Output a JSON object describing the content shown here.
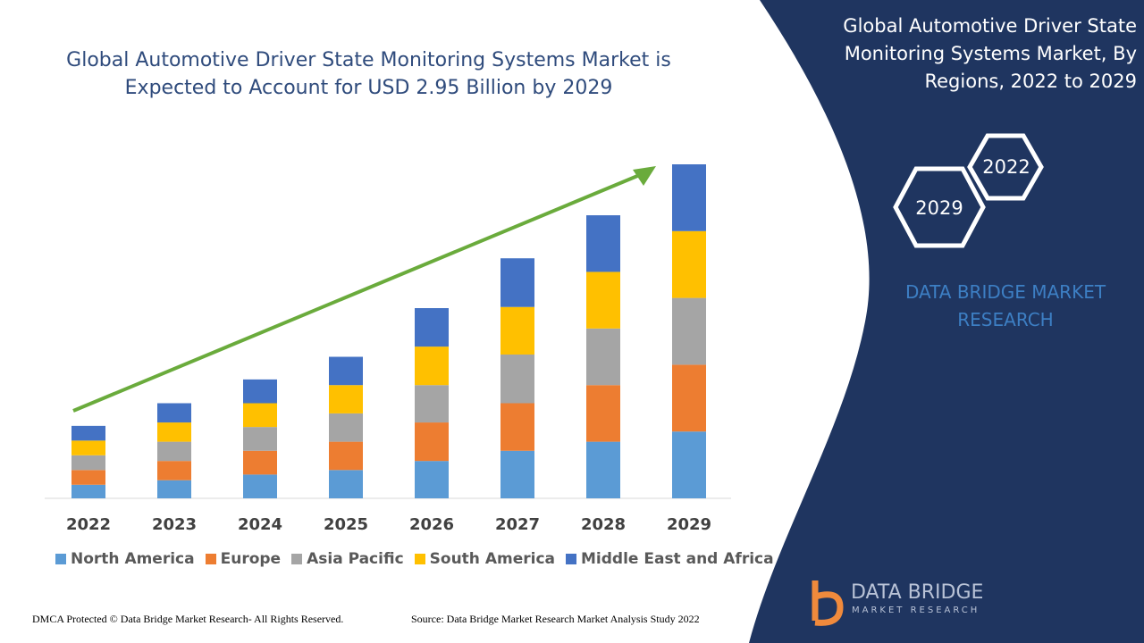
{
  "chart_data": {
    "type": "bar",
    "stacked": true,
    "title": "Global Automotive Driver State Monitoring Systems Market is Expected to Account for USD 2.95 Billion by 2029",
    "categories": [
      "2022",
      "2023",
      "2024",
      "2025",
      "2026",
      "2027",
      "2028",
      "2029"
    ],
    "series": [
      {
        "name": "North America",
        "color": "#5b9bd5",
        "values": [
          0.12,
          0.16,
          0.21,
          0.25,
          0.33,
          0.42,
          0.5,
          0.59
        ]
      },
      {
        "name": "Europe",
        "color": "#ed7d31",
        "values": [
          0.13,
          0.17,
          0.21,
          0.25,
          0.34,
          0.42,
          0.5,
          0.59
        ]
      },
      {
        "name": "Asia Pacific",
        "color": "#a5a5a5",
        "values": [
          0.13,
          0.17,
          0.21,
          0.25,
          0.33,
          0.43,
          0.5,
          0.59
        ]
      },
      {
        "name": "South America",
        "color": "#ffc000",
        "values": [
          0.13,
          0.17,
          0.21,
          0.25,
          0.34,
          0.42,
          0.5,
          0.59
        ]
      },
      {
        "name": "Middle East and Africa",
        "color": "#4472c4",
        "values": [
          0.13,
          0.17,
          0.21,
          0.25,
          0.34,
          0.43,
          0.5,
          0.59
        ]
      }
    ]
  },
  "panel": {
    "title": "Global Automotive Driver State Monitoring Systems Market, By Regions, 2022 to 2029",
    "hex_top": "2022",
    "hex_bottom": "2029",
    "brand": "DATA BRIDGE MARKET RESEARCH"
  },
  "footer": {
    "left": "DMCA Protected © Data Bridge Market Research- All Rights Reserved.",
    "right": "Source: Data Bridge Market Research Market Analysis Study 2022"
  },
  "logo": {
    "name": "DATA BRIDGE",
    "tagline": "MARKET RESEARCH"
  }
}
